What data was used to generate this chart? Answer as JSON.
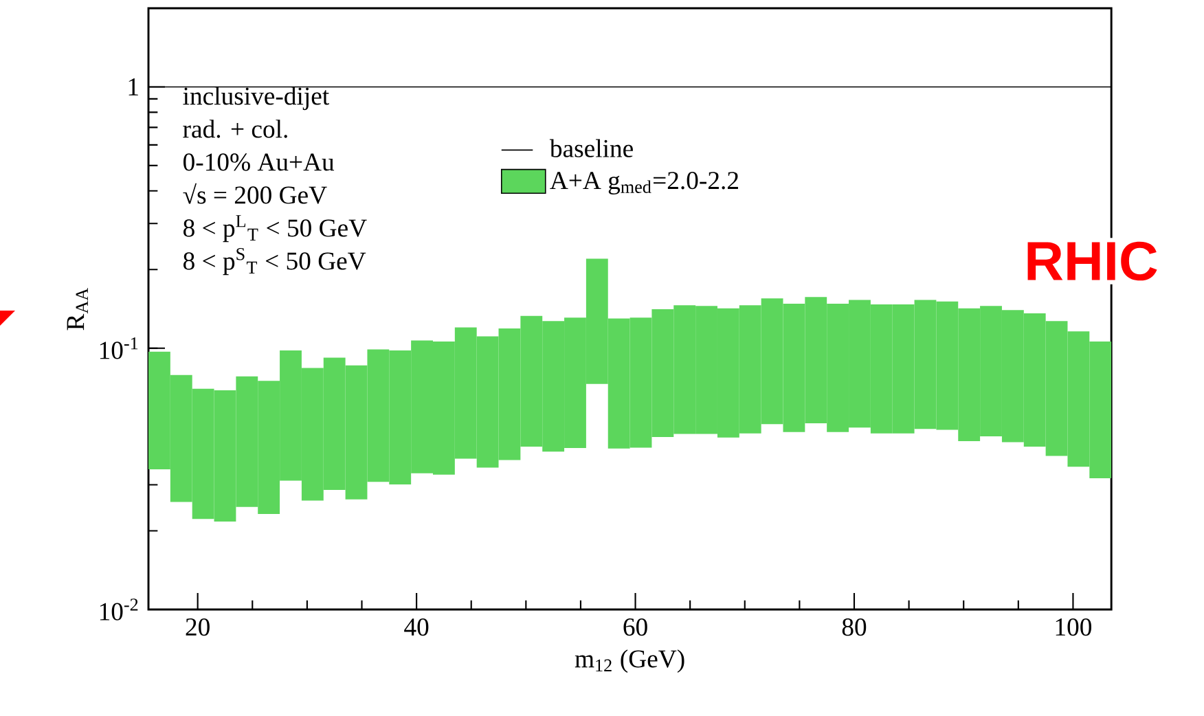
{
  "chart_data": {
    "type": "bar",
    "xlabel": "m$_{12}$ (GeV)",
    "ylabel": "R$_{AA}$",
    "x": [
      16.5,
      18.5,
      20.5,
      22.5,
      24.5,
      26.5,
      28.5,
      30.5,
      32.5,
      34.5,
      36.5,
      38.5,
      40.5,
      42.5,
      44.5,
      46.5,
      48.5,
      50.5,
      52.5,
      54.5,
      56.5,
      58.5,
      60.5,
      62.5,
      64.5,
      66.5,
      68.5,
      70.5,
      72.5,
      74.5,
      76.5,
      78.5,
      80.5,
      82.5,
      84.5,
      86.5,
      88.5,
      90.5,
      92.5,
      94.5,
      96.5,
      98.5,
      100.5,
      102.5
    ],
    "series": [
      {
        "name": "A+A g$_{med}$=2.0-2.2",
        "color": "#5cd65c",
        "base": [
          0.0344,
          0.0258,
          0.0222,
          0.0217,
          0.0247,
          0.0232,
          0.0311,
          0.0261,
          0.0287,
          0.0264,
          0.0308,
          0.0301,
          0.0332,
          0.0328,
          0.0378,
          0.0349,
          0.0373,
          0.042,
          0.0402,
          0.0415,
          0.073,
          0.0413,
          0.0416,
          0.0457,
          0.047,
          0.047,
          0.0455,
          0.0472,
          0.0512,
          0.0478,
          0.0516,
          0.0478,
          0.0497,
          0.0472,
          0.0472,
          0.0491,
          0.0487,
          0.0441,
          0.046,
          0.0437,
          0.042,
          0.0387,
          0.0352,
          0.0318
        ],
        "values": [
          0.0626,
          0.0532,
          0.0478,
          0.0473,
          0.0533,
          0.0518,
          0.0669,
          0.0579,
          0.0633,
          0.0596,
          0.0682,
          0.0679,
          0.0738,
          0.0732,
          0.0822,
          0.0761,
          0.0817,
          0.091,
          0.0868,
          0.0895,
          0.147,
          0.0887,
          0.0894,
          0.0953,
          0.099,
          0.098,
          0.0965,
          0.0988,
          0.1038,
          0.1002,
          0.1054,
          0.1002,
          0.1033,
          0.0998,
          0.0998,
          0.1039,
          0.1023,
          0.0979,
          0.099,
          0.0963,
          0.094,
          0.0883,
          0.0808,
          0.0742
        ]
      }
    ],
    "xlim": [
      15.5,
      103.5
    ],
    "xticks": [
      20,
      40,
      60,
      80,
      100
    ],
    "ylim": [
      0.01,
      2
    ],
    "yticks": [
      {
        "value": 0.01,
        "label": "10$^{-2}$"
      },
      {
        "value": 0.1,
        "label": "10$^{-1}$"
      },
      {
        "value": 1,
        "label": "1"
      }
    ],
    "log": true,
    "ref_lines": [
      {
        "axis": "y",
        "value": 1,
        "label": "baseline",
        "color": "#000000"
      }
    ],
    "legend": "top",
    "annotations": [
      "inclusive-dijet",
      "rad. + col.",
      "0-10% Au+Au",
      "√s = 200 GeV",
      "8 < p$^{L}$$_{T}$ < 50 GeV",
      "8 < p$^{S}$$_{T}$ < 50 GeV",
      "RHIC"
    ]
  }
}
